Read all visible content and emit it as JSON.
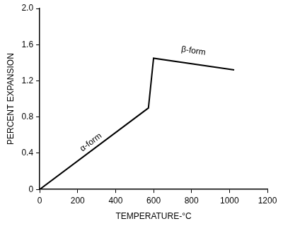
{
  "chart_data": {
    "type": "line",
    "x_label": "TEMPERATURE-°C",
    "y_label": "PERCENT EXPANSION",
    "x": [
      0,
      573,
      600,
      1025
    ],
    "values": [
      0,
      0.9,
      1.45,
      1.32
    ],
    "color": "#000000",
    "xlim": [
      0,
      1200
    ],
    "xticks": [
      0,
      200,
      400,
      600,
      800,
      1000,
      1200
    ],
    "ylim": [
      0,
      2
    ],
    "yticks": [
      0,
      0.4,
      0.8,
      1.2,
      1.6,
      {
        "value": 2,
        "label": "2.0"
      }
    ],
    "grid": false,
    "annotations": [
      {
        "text": "α-form",
        "x": 270,
        "y": 0.52
      },
      {
        "text": "β-form",
        "x": 810,
        "y": 1.53
      }
    ]
  }
}
